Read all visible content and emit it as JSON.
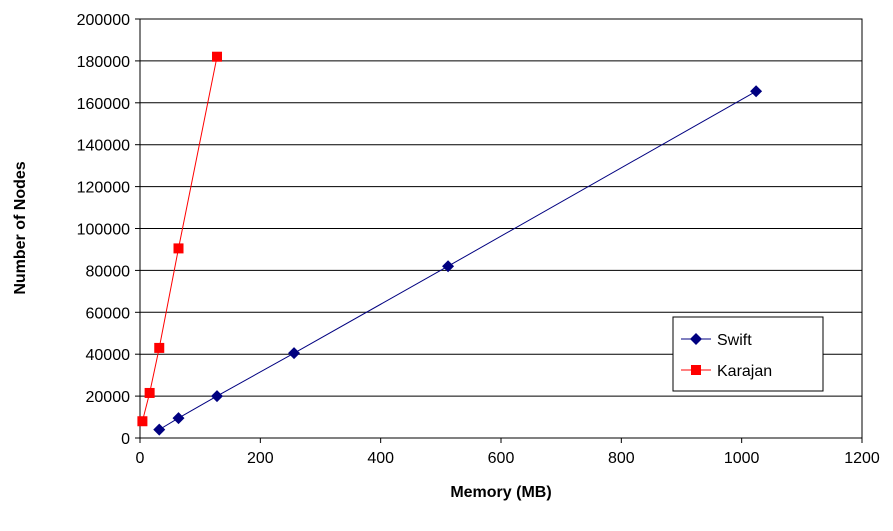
{
  "chart_data": {
    "type": "line",
    "title": "",
    "xlabel": "Memory (MB)",
    "ylabel": "Number of Nodes",
    "xlim": [
      0,
      1200
    ],
    "ylim": [
      0,
      200000
    ],
    "x_ticks": [
      "0",
      "200",
      "400",
      "600",
      "800",
      "1000",
      "1200"
    ],
    "y_ticks": [
      "0",
      "20000",
      "40000",
      "60000",
      "80000",
      "100000",
      "120000",
      "140000",
      "160000",
      "180000",
      "200000"
    ],
    "grid": "horizontal",
    "legend_position": "right",
    "series": [
      {
        "name": "Swift",
        "color": "#000080",
        "marker": "diamond",
        "x": [
          32,
          64,
          128,
          256,
          512,
          1024
        ],
        "y": [
          4000,
          9500,
          20000,
          40500,
          82000,
          165500
        ]
      },
      {
        "name": "Karajan",
        "color": "#ff0000",
        "marker": "square",
        "x": [
          4,
          16,
          32,
          64,
          128
        ],
        "y": [
          8000,
          21500,
          43000,
          90500,
          182000
        ]
      }
    ]
  }
}
